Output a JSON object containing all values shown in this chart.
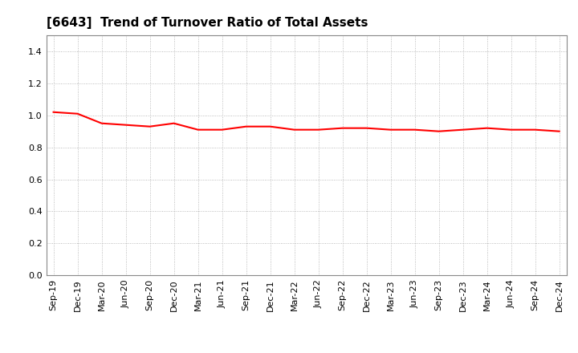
{
  "title": "[6643]  Trend of Turnover Ratio of Total Assets",
  "line_color": "#FF0000",
  "line_width": 1.5,
  "background_color": "#FFFFFF",
  "grid_color": "#AAAAAA",
  "ylim": [
    0.0,
    1.5
  ],
  "yticks": [
    0.0,
    0.2,
    0.4,
    0.6,
    0.8,
    1.0,
    1.2,
    1.4
  ],
  "labels": [
    "Sep-19",
    "Dec-19",
    "Mar-20",
    "Jun-20",
    "Sep-20",
    "Dec-20",
    "Mar-21",
    "Jun-21",
    "Sep-21",
    "Dec-21",
    "Mar-22",
    "Jun-22",
    "Sep-22",
    "Dec-22",
    "Mar-23",
    "Jun-23",
    "Sep-23",
    "Dec-23",
    "Mar-24",
    "Jun-24",
    "Sep-24",
    "Dec-24"
  ],
  "values": [
    1.02,
    1.01,
    0.95,
    0.94,
    0.93,
    0.95,
    0.91,
    0.91,
    0.93,
    0.93,
    0.91,
    0.91,
    0.92,
    0.92,
    0.91,
    0.91,
    0.9,
    0.91,
    0.92,
    0.91,
    0.91,
    0.9
  ]
}
